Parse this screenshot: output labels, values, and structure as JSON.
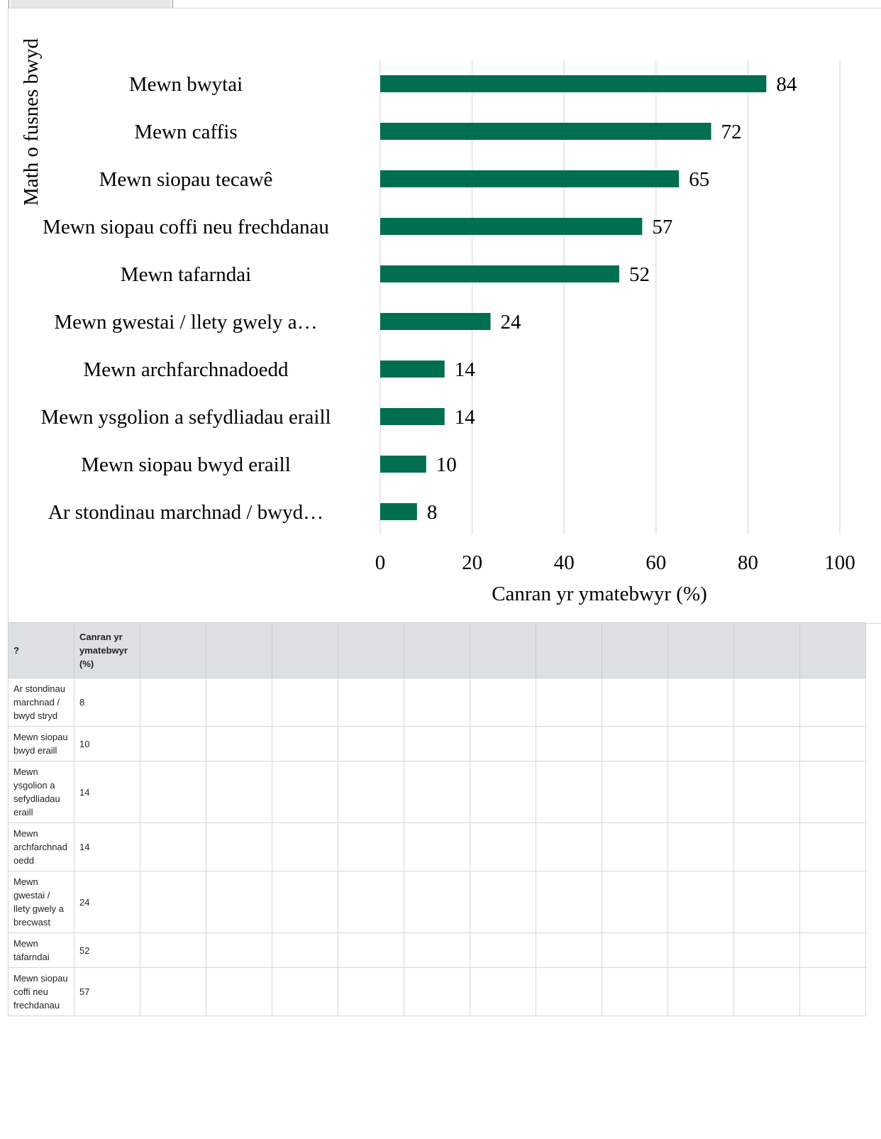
{
  "chart_data": {
    "type": "bar",
    "orientation": "horizontal",
    "categories": [
      "Mewn bwytai",
      "Mewn caffis",
      "Mewn siopau tecawê",
      "Mewn siopau coffi neu frechdanau",
      "Mewn tafarndai",
      "Mewn gwestai / llety gwely a…",
      "Mewn archfarchnadoedd",
      "Mewn ysgolion a sefydliadau eraill",
      "Mewn siopau bwyd eraill",
      "Ar stondinau marchnad / bwyd…"
    ],
    "values": [
      84,
      72,
      65,
      57,
      52,
      24,
      14,
      14,
      10,
      8
    ],
    "xlabel": "Canran yr ymatebwyr (%)",
    "ylabel": "Math o fusnes bwyd",
    "xlim": [
      0,
      100
    ],
    "xticks": [
      "0",
      "20",
      "40",
      "60",
      "80",
      "100"
    ],
    "grid": "vertical",
    "bar_color": "#006e51"
  },
  "table": {
    "headers": [
      "?",
      "Canran yr ymatebwyr (%)"
    ],
    "rows": [
      [
        "Ar stondinau marchnad / bwyd stryd",
        "8"
      ],
      [
        "Mewn siopau bwyd eraill",
        "10"
      ],
      [
        "Mewn ysgolion a sefydliadau eraill",
        "14"
      ],
      [
        "Mewn archfarchnadoedd",
        "14"
      ],
      [
        "Mewn gwestai / llety gwely a brecwast",
        "24"
      ],
      [
        "Mewn tafarndai",
        "52"
      ],
      [
        "Mewn siopau coffi neu frechdanau",
        "57"
      ]
    ]
  }
}
